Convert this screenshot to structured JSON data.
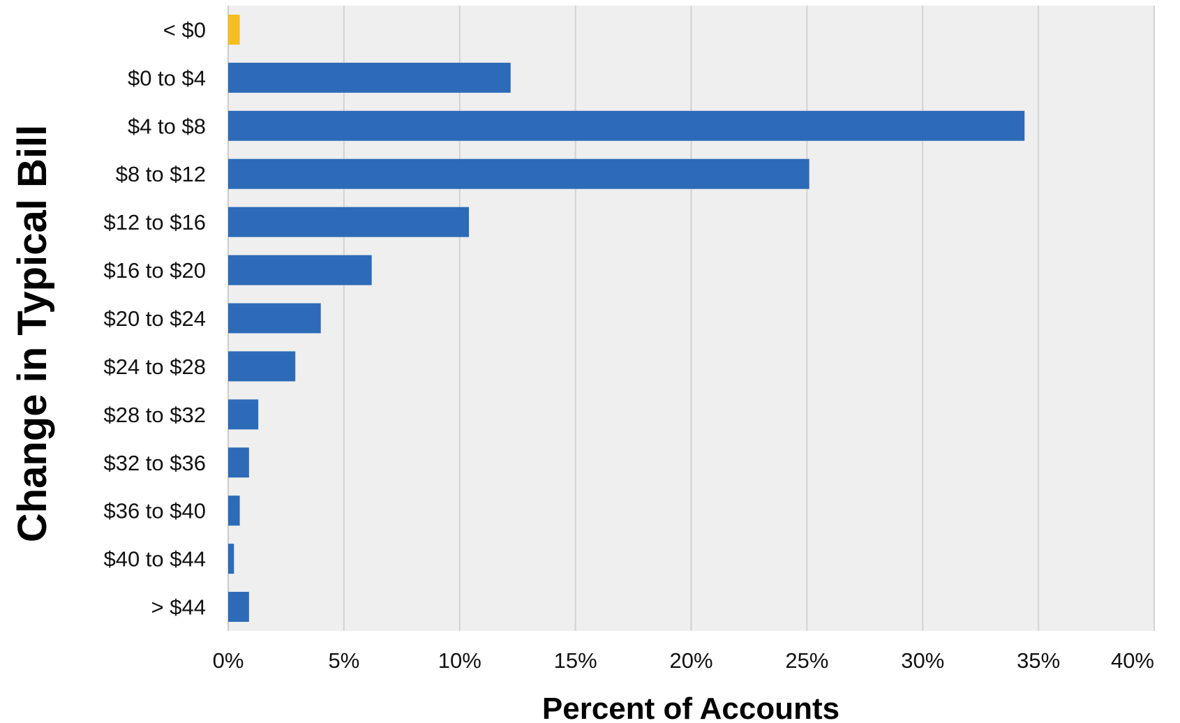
{
  "chart_data": {
    "type": "bar",
    "orientation": "horizontal",
    "xlabel": "Percent of Accounts",
    "ylabel": "Change in Typical Bill",
    "categories": [
      "< $0",
      "$0 to $4",
      "$4 to $8",
      "$8 to $12",
      "$12 to $16",
      "$16 to $20",
      "$20 to $24",
      "$24 to $28",
      "$28 to $32",
      "$32 to $36",
      "$36 to $40",
      "$40 to $44",
      "> $44"
    ],
    "values": [
      0.5,
      12.2,
      34.4,
      25.1,
      10.4,
      6.2,
      4.0,
      2.9,
      1.3,
      0.9,
      0.5,
      0.25,
      0.9
    ],
    "bar_colors": [
      "#f5bd1f",
      "#2d6bb8",
      "#2d6bb8",
      "#2d6bb8",
      "#2d6bb8",
      "#2d6bb8",
      "#2d6bb8",
      "#2d6bb8",
      "#2d6bb8",
      "#2d6bb8",
      "#2d6bb8",
      "#2d6bb8",
      "#2d6bb8"
    ],
    "xlim": [
      0,
      40
    ],
    "xticks": [
      0,
      5,
      10,
      15,
      20,
      25,
      30,
      35,
      40
    ],
    "xtick_labels": [
      "0%",
      "5%",
      "10%",
      "15%",
      "20%",
      "25%",
      "30%",
      "35%",
      "40%"
    ],
    "grid": "vertical",
    "plot_background": "#efefef",
    "grid_color": "#d2d2d2"
  }
}
